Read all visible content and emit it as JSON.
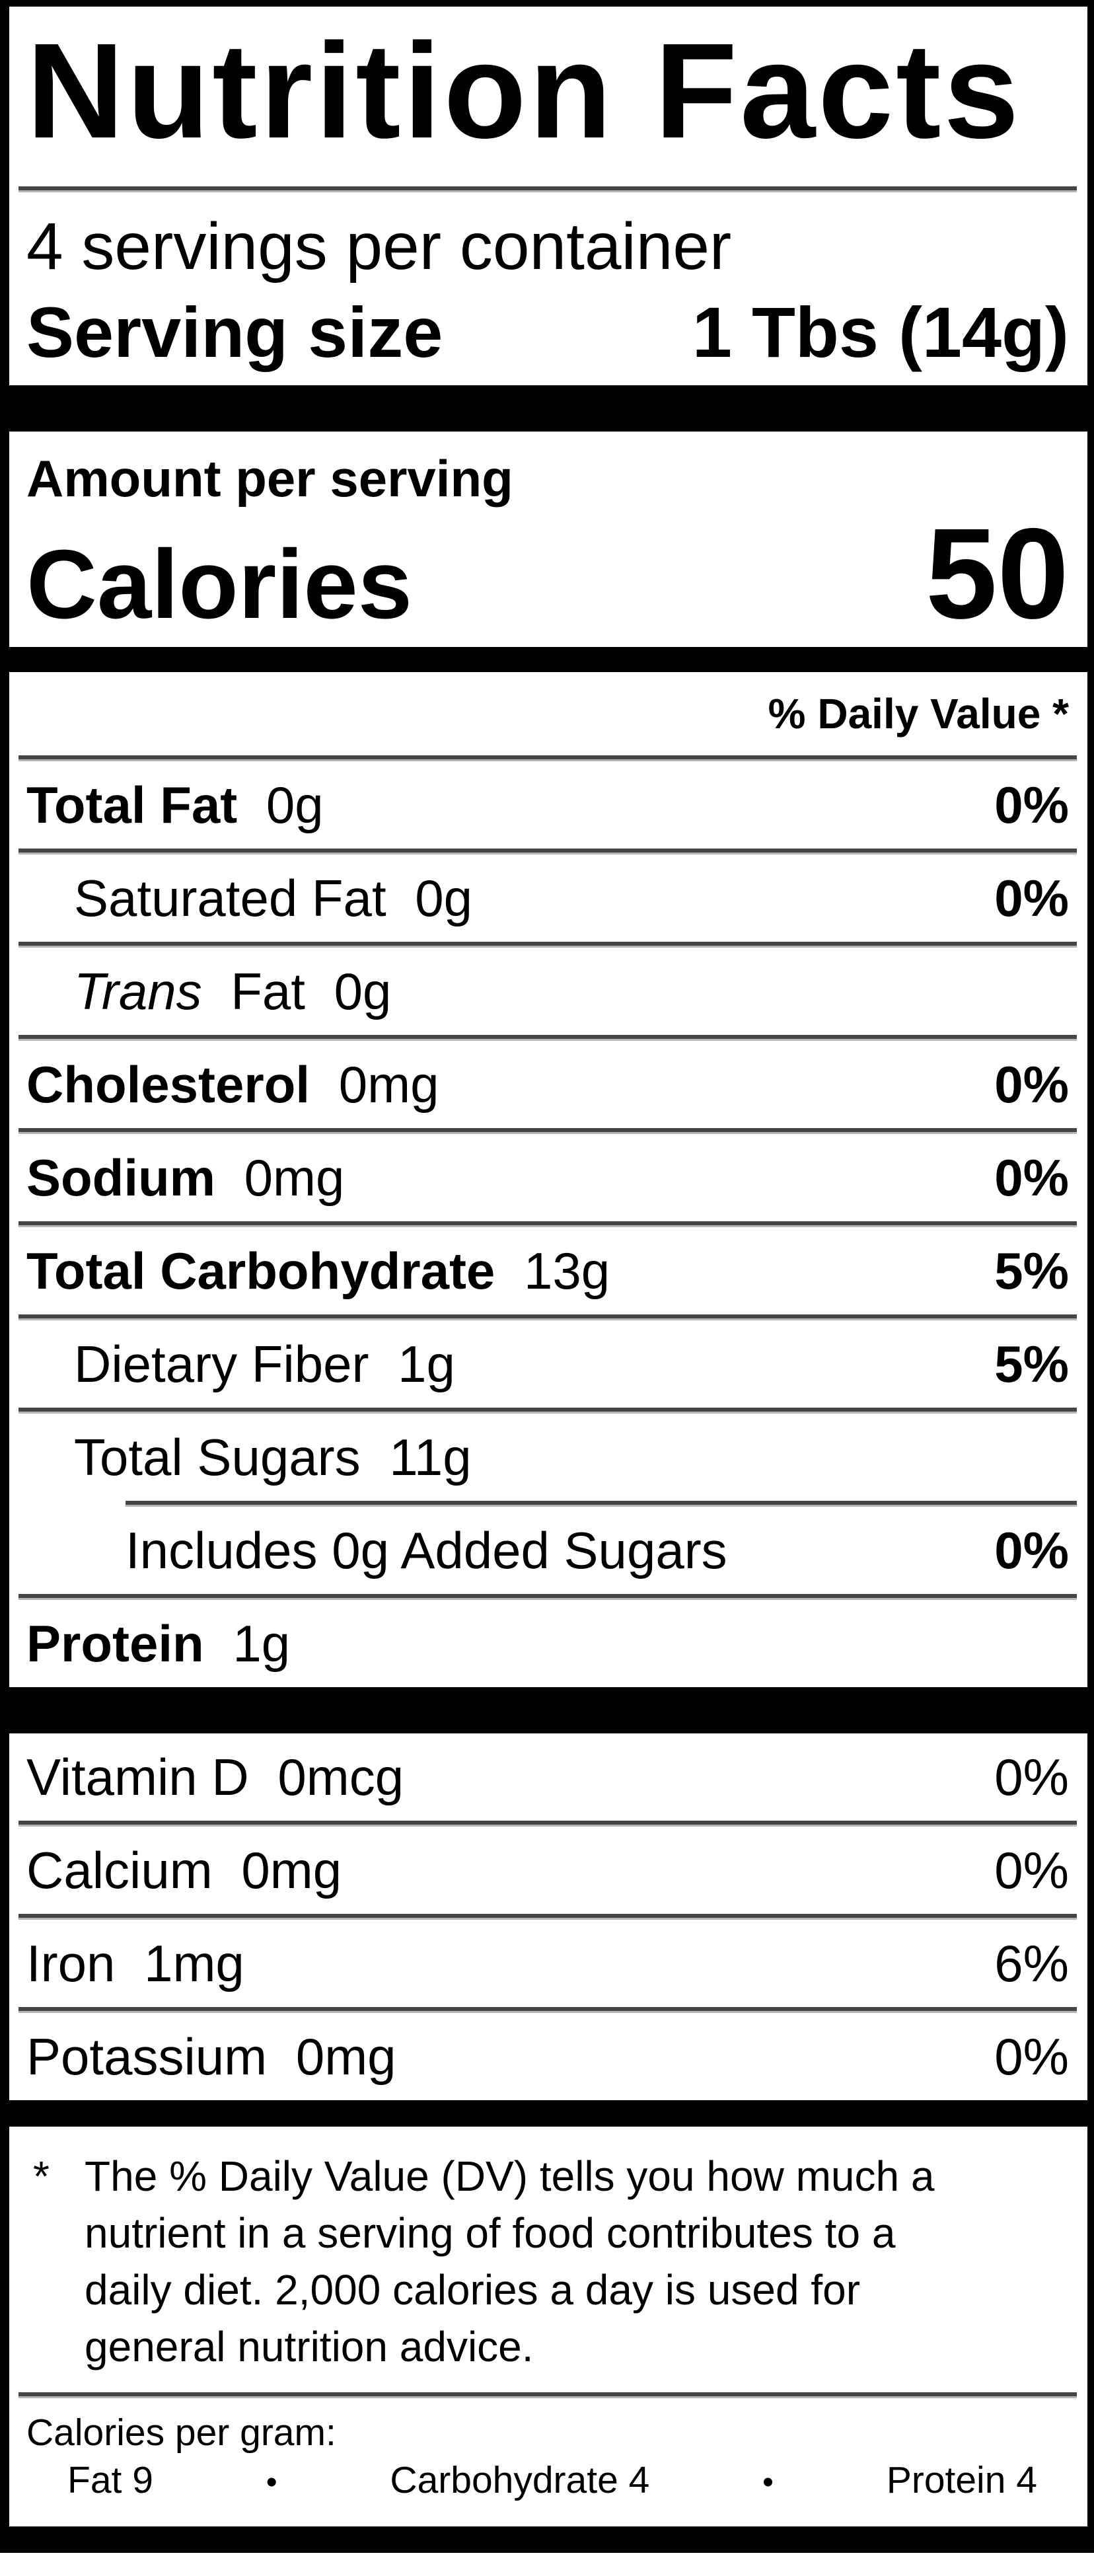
{
  "label": {
    "title": "Nutrition Facts",
    "servings_per_container": "4 servings per container",
    "serving_size_label": "Serving size",
    "serving_size_value": "1 Tbs (14g)",
    "amount_per_serving": "Amount per serving",
    "calories_label": "Calories",
    "calories_value": "50",
    "daily_value_header": "% Daily Value *",
    "nutrients": [
      {
        "name": "Total Fat",
        "amount": "0g",
        "dv": "0%"
      },
      {
        "name": "Saturated Fat",
        "amount": "0g",
        "dv": "0%"
      },
      {
        "name_italic": "Trans",
        "name": "Fat",
        "amount": "0g",
        "dv": ""
      },
      {
        "name": "Cholesterol",
        "amount": "0mg",
        "dv": "0%"
      },
      {
        "name": "Sodium",
        "amount": "0mg",
        "dv": "0%"
      },
      {
        "name": "Total Carbohydrate",
        "amount": "13g",
        "dv": "5%"
      },
      {
        "name": "Dietary Fiber",
        "amount": "1g",
        "dv": "5%"
      },
      {
        "name": "Total Sugars",
        "amount": "11g",
        "dv": ""
      },
      {
        "name": "Includes 0g Added Sugars",
        "amount": "",
        "dv": "0%"
      },
      {
        "name": "Protein",
        "amount": "1g",
        "dv": ""
      }
    ],
    "micronutrients": [
      {
        "name": "Vitamin D",
        "amount": "0mcg",
        "dv": "0%"
      },
      {
        "name": "Calcium",
        "amount": "0mg",
        "dv": "0%"
      },
      {
        "name": "Iron",
        "amount": "1mg",
        "dv": "6%"
      },
      {
        "name": "Potassium",
        "amount": "0mg",
        "dv": "0%"
      }
    ],
    "footnote": {
      "asterisk": "*",
      "lines": [
        "The % Daily Value (DV) tells you how much a",
        "nutrient in a serving of food contributes to a",
        "daily diet. 2,000 calories a day is used for",
        "general nutrition advice."
      ]
    },
    "calories_per_gram": {
      "heading": "Calories per gram:",
      "bullet": "•",
      "items": [
        "Fat 9",
        "Carbohydrate 4",
        "Protein 4"
      ]
    },
    "colors": {
      "background": "#ffffff",
      "text": "#000000",
      "bar": "#000000",
      "separator_dark": "#454545",
      "separator_light": "#b5b5b5"
    }
  }
}
